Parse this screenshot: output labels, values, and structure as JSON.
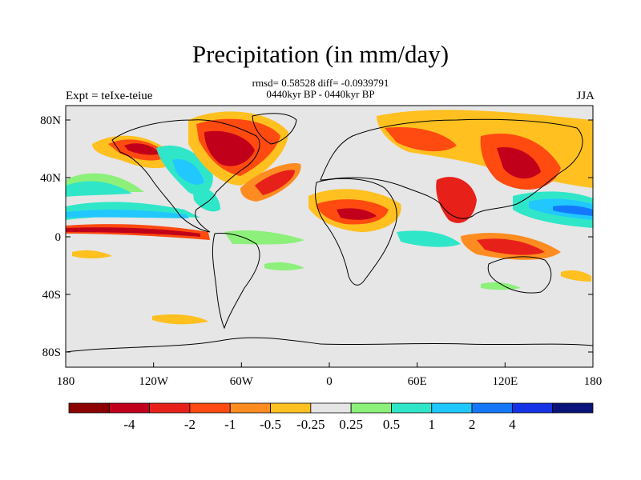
{
  "title": "Precipitation (in mm/day)",
  "stats_line1": "rmsd= 0.58528 diff= -0.0939791",
  "stats_line2": "0440kyr BP - 0440kyr BP",
  "experiment": "Expt = teIxe-teiue",
  "season": "JJA",
  "y_ticks": [
    "80N",
    "40N",
    "0",
    "40S",
    "80S"
  ],
  "x_ticks": [
    "180",
    "120W",
    "60W",
    "0",
    "60E",
    "120E",
    "180"
  ],
  "colorbar": {
    "colors": [
      "#8b0000",
      "#c0001a",
      "#e8201a",
      "#ff4a10",
      "#ff8c20",
      "#ffc020",
      "#e6e6e6",
      "#8cf07a",
      "#30e6c8",
      "#20c8ff",
      "#1478ff",
      "#1432e6",
      "#0a1478"
    ],
    "labels": [
      "-4",
      "-2",
      "-1",
      "-0.5",
      "-0.25",
      "0.25",
      "0.5",
      "1",
      "2",
      "4"
    ]
  },
  "background_color": "#e6e6e6"
}
